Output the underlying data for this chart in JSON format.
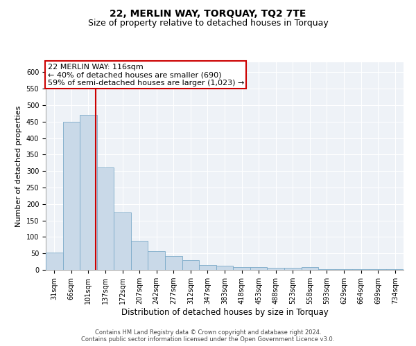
{
  "title": "22, MERLIN WAY, TORQUAY, TQ2 7TE",
  "subtitle": "Size of property relative to detached houses in Torquay",
  "xlabel": "Distribution of detached houses by size in Torquay",
  "ylabel": "Number of detached properties",
  "categories": [
    "31sqm",
    "66sqm",
    "101sqm",
    "137sqm",
    "172sqm",
    "207sqm",
    "242sqm",
    "277sqm",
    "312sqm",
    "347sqm",
    "383sqm",
    "418sqm",
    "453sqm",
    "488sqm",
    "523sqm",
    "558sqm",
    "593sqm",
    "629sqm",
    "664sqm",
    "699sqm",
    "734sqm"
  ],
  "values": [
    52,
    450,
    470,
    310,
    175,
    88,
    57,
    43,
    30,
    15,
    13,
    8,
    8,
    7,
    6,
    8,
    3,
    3,
    3,
    3,
    3
  ],
  "bar_color": "#c9d9e8",
  "bar_edge_color": "#7baac8",
  "annotation_text_line1": "22 MERLIN WAY: 116sqm",
  "annotation_text_line2": "← 40% of detached houses are smaller (690)",
  "annotation_text_line3": "59% of semi-detached houses are larger (1,023) →",
  "annotation_box_color": "#ffffff",
  "annotation_box_edge_color": "#cc0000",
  "vline_color": "#cc0000",
  "ylim": [
    0,
    630
  ],
  "yticks": [
    0,
    50,
    100,
    150,
    200,
    250,
    300,
    350,
    400,
    450,
    500,
    550,
    600
  ],
  "background_color": "#eef2f7",
  "footer_line1": "Contains HM Land Registry data © Crown copyright and database right 2024.",
  "footer_line2": "Contains public sector information licensed under the Open Government Licence v3.0.",
  "title_fontsize": 10,
  "subtitle_fontsize": 9,
  "xlabel_fontsize": 8.5,
  "ylabel_fontsize": 8,
  "tick_fontsize": 7,
  "annotation_fontsize": 8,
  "footer_fontsize": 6
}
